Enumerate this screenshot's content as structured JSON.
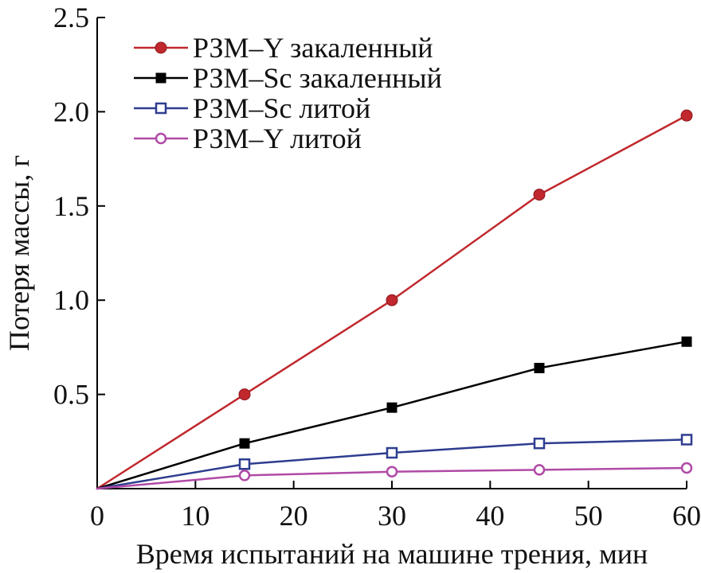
{
  "chart_data": {
    "type": "line",
    "title": "",
    "xlabel": "Время испытаний на машине трения, мин",
    "ylabel": "Потеря массы, г",
    "xlim": [
      0,
      60
    ],
    "ylim": [
      0,
      2.5
    ],
    "x_ticks": [
      "0",
      "10",
      "20",
      "30",
      "40",
      "50",
      "60"
    ],
    "x_tick_values": [
      0,
      10,
      20,
      30,
      40,
      50,
      60
    ],
    "y_ticks": [
      "0.5",
      "1.0",
      "1.5",
      "2.0",
      "2.5"
    ],
    "y_tick_values": [
      0.5,
      1.0,
      1.5,
      2.0,
      2.5
    ],
    "grid": false,
    "legend_position": "top-left",
    "series": [
      {
        "name": "РЗМ–Y закаленный",
        "x": [
          0,
          15,
          30,
          45,
          60
        ],
        "values": [
          0,
          0.5,
          1.0,
          1.56,
          1.98
        ],
        "color": "#c0282d",
        "marker": "filled-circle"
      },
      {
        "name": "РЗМ–Sc закаленный",
        "x": [
          0,
          15,
          30,
          45,
          60
        ],
        "values": [
          0,
          0.24,
          0.43,
          0.64,
          0.78
        ],
        "color": "#000000",
        "marker": "filled-square"
      },
      {
        "name": "РЗМ–Sc литой",
        "x": [
          0,
          15,
          30,
          45,
          60
        ],
        "values": [
          0,
          0.13,
          0.19,
          0.24,
          0.26
        ],
        "color": "#2e3d8f",
        "marker": "open-square"
      },
      {
        "name": "РЗМ–Y литой",
        "x": [
          0,
          15,
          30,
          45,
          60
        ],
        "values": [
          0,
          0.07,
          0.09,
          0.1,
          0.11
        ],
        "color": "#b04aa6",
        "marker": "open-circle"
      }
    ]
  }
}
